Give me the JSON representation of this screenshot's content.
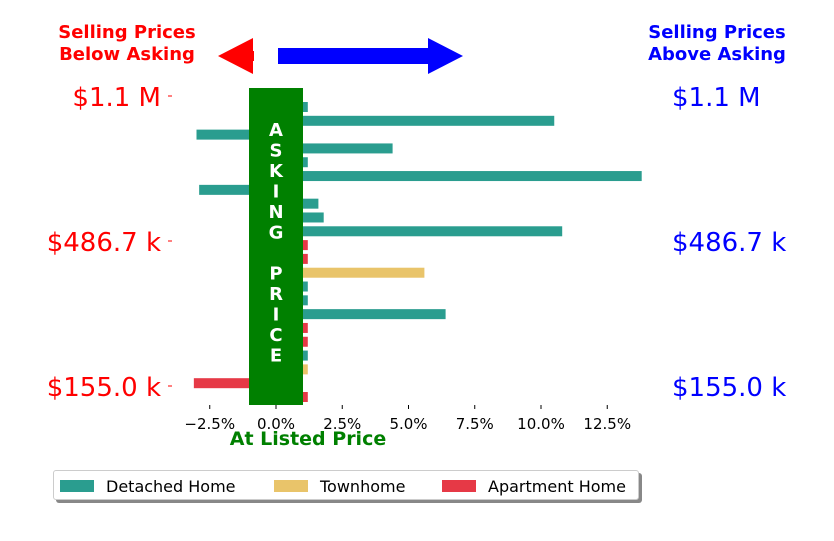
{
  "chart_data": {
    "type": "bar",
    "orientation": "horizontal",
    "x_axis": {
      "lim": [
        -3.8,
        14
      ],
      "ticks": [
        -2.5,
        0.0,
        2.5,
        5.0,
        7.5,
        10.0,
        12.5
      ],
      "tick_labels": [
        "−2.5%",
        "0.0%",
        "2.5%",
        "5.0%",
        "7.5%",
        "10.0%",
        "12.5%"
      ],
      "xlabel": "At Listed Price"
    },
    "y_axis": {
      "tick_labels_left": [
        "$1.1 M",
        "$486.7 k",
        "$155.0 k"
      ],
      "tick_labels_right": [
        "$1.1 M",
        "$486.7 k",
        "$155.0 k"
      ]
    },
    "legend": {
      "placement": "bottom",
      "entries": [
        {
          "name": "Detached Home",
          "color": "#2a9d8f"
        },
        {
          "name": "Townhome",
          "color": "#e9c46a"
        },
        {
          "name": "Apartment Home",
          "color": "#e63946"
        }
      ]
    },
    "bars": [
      {
        "type": "Detached Home",
        "value": 1.2
      },
      {
        "type": "Detached Home",
        "value": 10.5
      },
      {
        "type": "Detached Home",
        "value": -3.0
      },
      {
        "type": "Detached Home",
        "value": 4.4
      },
      {
        "type": "Detached Home",
        "value": 1.2
      },
      {
        "type": "Detached Home",
        "value": 13.8
      },
      {
        "type": "Detached Home",
        "value": -2.9
      },
      {
        "type": "Detached Home",
        "value": 1.6
      },
      {
        "type": "Detached Home",
        "value": 1.8
      },
      {
        "type": "Detached Home",
        "value": 10.8
      },
      {
        "type": "Apartment Home",
        "value": 1.2
      },
      {
        "type": "Apartment Home",
        "value": 1.2
      },
      {
        "type": "Townhome",
        "value": 5.6
      },
      {
        "type": "Detached Home",
        "value": 1.2
      },
      {
        "type": "Detached Home",
        "value": 1.2
      },
      {
        "type": "Detached Home",
        "value": 6.4
      },
      {
        "type": "Apartment Home",
        "value": 1.2
      },
      {
        "type": "Apartment Home",
        "value": 1.2
      },
      {
        "type": "Detached Home",
        "value": 1.2
      },
      {
        "type": "Townhome",
        "value": 1.2
      },
      {
        "type": "Apartment Home",
        "value": -3.1
      },
      {
        "type": "Apartment Home",
        "value": 1.2
      }
    ]
  },
  "annotations": {
    "below_asking": [
      "Selling Prices",
      "Below Asking"
    ],
    "above_asking": [
      "Selling Prices",
      "Above Asking"
    ],
    "asking_price_letters": [
      "A",
      "S",
      "K",
      "I",
      "N",
      "G",
      "",
      "P",
      "R",
      "I",
      "C",
      "E"
    ]
  },
  "colors": {
    "below": "#ff0000",
    "above": "#0000ff",
    "asking": "#008000"
  }
}
